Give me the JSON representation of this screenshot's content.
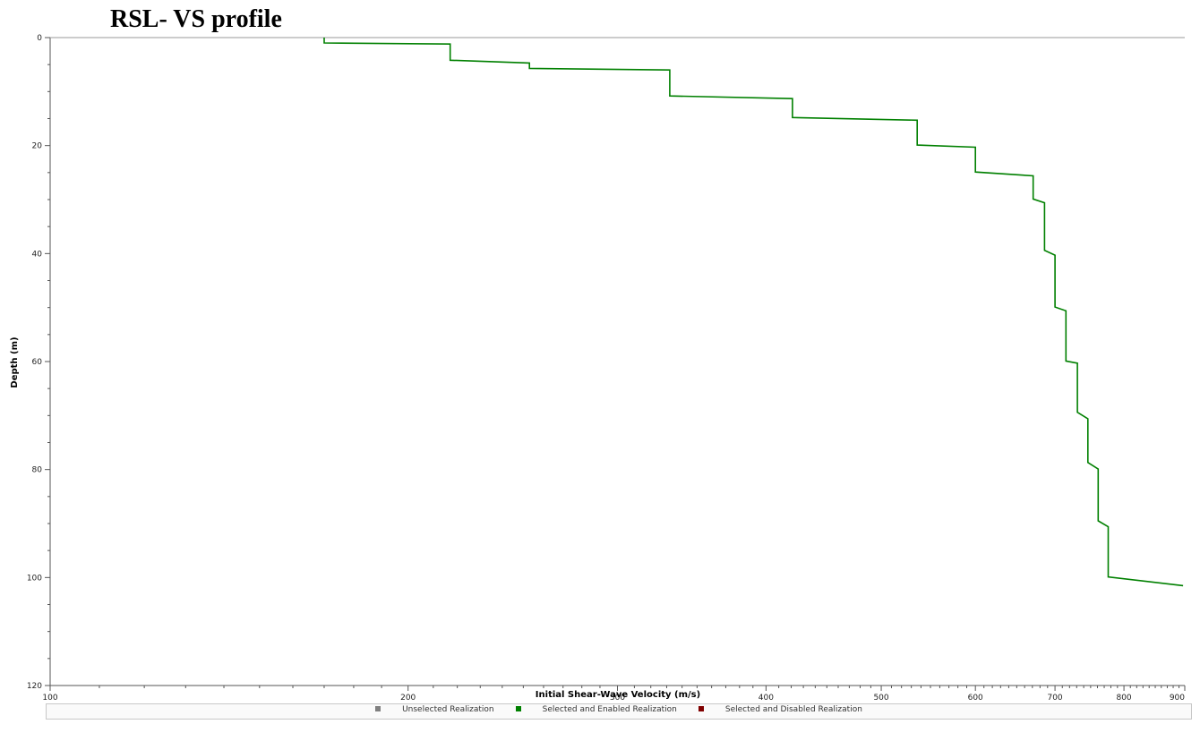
{
  "page": {
    "title": "RSL- VS profile"
  },
  "chart_data": {
    "type": "line",
    "title": "RSL- VS profile",
    "xlabel": "Initial Shear-Wave Velocity (m/s)",
    "ylabel": "Depth (m)",
    "xscale": "log",
    "xlim": [
      100,
      900
    ],
    "ylim": [
      0,
      120
    ],
    "y_inverted": true,
    "x_ticks": [
      100,
      200,
      300,
      400,
      500,
      600,
      700,
      800,
      900
    ],
    "y_ticks": [
      0,
      20,
      40,
      60,
      80,
      100,
      120
    ],
    "grid": false,
    "legend_position": "bottom",
    "series": [
      {
        "color": "#008000",
        "x": [
          170,
          170,
          217,
          217,
          253,
          253,
          332,
          332,
          421,
          421,
          536,
          536,
          600,
          600,
          671,
          671,
          686,
          686,
          700,
          700,
          715,
          715,
          731,
          731,
          746,
          746,
          761,
          761,
          776,
          776,
          897
        ],
        "y": [
          0,
          1,
          1.2,
          4.2,
          4.7,
          5.7,
          6.0,
          10.8,
          11.3,
          14.8,
          15.3,
          19.9,
          20.3,
          24.9,
          25.6,
          29.9,
          30.6,
          39.4,
          40.3,
          49.9,
          50.6,
          59.9,
          60.3,
          69.4,
          70.6,
          78.7,
          79.9,
          89.5,
          90.6,
          99.9,
          101.5
        ]
      }
    ],
    "legend": [
      {
        "label": "Unselected Realization",
        "color": "#808080"
      },
      {
        "label": "Selected and Enabled Realization",
        "color": "#008000"
      },
      {
        "label": "Selected and Disabled Realization",
        "color": "#800000"
      }
    ]
  }
}
